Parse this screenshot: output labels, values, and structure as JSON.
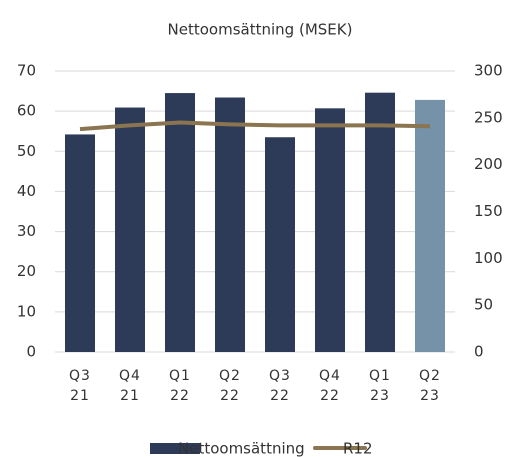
{
  "chart_data": {
    "type": "bar",
    "title": "Nettoomsättning (MSEK)",
    "categories": [
      "Q3 21",
      "Q4 21",
      "Q1 22",
      "Q2 22",
      "Q3 22",
      "Q4 22",
      "Q1 23",
      "Q2 23"
    ],
    "series": [
      {
        "name": "Nettoomsättning",
        "type": "bar",
        "color": "#2e3b58",
        "colors": [
          "#2e3b58",
          "#2e3b58",
          "#2e3b58",
          "#2e3b58",
          "#2e3b58",
          "#2e3b58",
          "#2e3b58",
          "#7592a8"
        ],
        "values": [
          54.2,
          60.9,
          64.5,
          63.4,
          53.5,
          60.7,
          64.6,
          62.8
        ]
      },
      {
        "name": "R12",
        "type": "line",
        "axis": "y2",
        "color": "#8b7450",
        "values": [
          238,
          242,
          245,
          243,
          242,
          242,
          242,
          241
        ]
      }
    ],
    "ylim": [
      0,
      70
    ],
    "yticks": [
      0,
      10,
      20,
      30,
      40,
      50,
      60,
      70
    ],
    "y2lim": [
      0,
      300
    ],
    "y2ticks": [
      0,
      50,
      100,
      150,
      200,
      250,
      300
    ],
    "grid": true,
    "legend": "bottom"
  }
}
